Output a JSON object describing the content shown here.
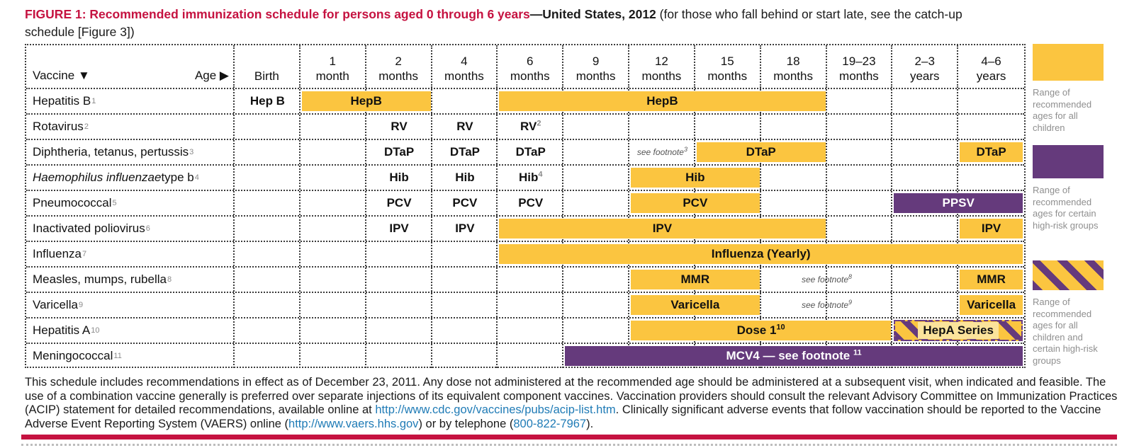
{
  "title": {
    "figure_red": "FIGURE 1: Recommended immunization schedule for persons aged 0 through 6 years",
    "bold_suffix": "—United States, 2012",
    "normal_line1": " (for those who fall behind or start late, see the catch-up",
    "normal_line2": "schedule [Figure 3])"
  },
  "colors": {
    "yellow": "#FBC540",
    "purple": "#653A7C",
    "red": "#C51240",
    "link_blue": "#1F7BB6",
    "legend_text_gray": "#8F8F8F"
  },
  "chart_data": {
    "type": "table",
    "title": "FIGURE 1: Recommended immunization schedule for persons aged 0 through 6 years—United States, 2012",
    "corner": {
      "vaccine": "Vaccine ▼",
      "age": "Age ▶"
    },
    "age_columns": [
      {
        "line1": "",
        "line2": "Birth"
      },
      {
        "line1": "1",
        "line2": "month"
      },
      {
        "line1": "2",
        "line2": "months"
      },
      {
        "line1": "4",
        "line2": "months"
      },
      {
        "line1": "6",
        "line2": "months"
      },
      {
        "line1": "9",
        "line2": "months"
      },
      {
        "line1": "12",
        "line2": "months"
      },
      {
        "line1": "15",
        "line2": "months"
      },
      {
        "line1": "18",
        "line2": "months"
      },
      {
        "line1": "19–23",
        "line2": "months"
      },
      {
        "line1": "2–3",
        "line2": "years"
      },
      {
        "line1": "4–6",
        "line2": "years"
      }
    ],
    "rows": [
      {
        "vaccine": "Hepatitis B",
        "sup": "1",
        "items": [
          {
            "t": "text",
            "c": 1,
            "s": 1,
            "label": "Hep B"
          },
          {
            "t": "ybar",
            "c": 2,
            "s": 2,
            "label": "HepB"
          },
          {
            "t": "ybar",
            "c": 5,
            "s": 5,
            "label": "HepB"
          }
        ]
      },
      {
        "vaccine": "Rotavirus",
        "sup": "2",
        "items": [
          {
            "t": "text",
            "c": 3,
            "s": 1,
            "label": "RV"
          },
          {
            "t": "text",
            "c": 4,
            "s": 1,
            "label": "RV"
          },
          {
            "t": "text",
            "c": 5,
            "s": 1,
            "label": "RV",
            "sup": "2"
          }
        ]
      },
      {
        "vaccine": "Diphtheria, tetanus, pertussis",
        "sup": "3",
        "items": [
          {
            "t": "text",
            "c": 3,
            "s": 1,
            "label": "DTaP"
          },
          {
            "t": "text",
            "c": 4,
            "s": 1,
            "label": "DTaP"
          },
          {
            "t": "text",
            "c": 5,
            "s": 1,
            "label": "DTaP"
          },
          {
            "t": "note",
            "c": 7,
            "s": 1,
            "label": "see footnote",
            "sup": "3"
          },
          {
            "t": "ybar",
            "c": 8,
            "s": 2,
            "label": "DTaP"
          },
          {
            "t": "ybar",
            "c": 12,
            "s": 1,
            "label": "DTaP"
          }
        ]
      },
      {
        "vaccine_italic": "Haemophilus influenzae",
        "vaccine": " type b",
        "sup": "4",
        "items": [
          {
            "t": "text",
            "c": 3,
            "s": 1,
            "label": "Hib"
          },
          {
            "t": "text",
            "c": 4,
            "s": 1,
            "label": "Hib"
          },
          {
            "t": "text",
            "c": 5,
            "s": 1,
            "label": "Hib",
            "sup": "4"
          },
          {
            "t": "ybar",
            "c": 7,
            "s": 2,
            "label": "Hib"
          }
        ]
      },
      {
        "vaccine": "Pneumococcal",
        "sup": "5",
        "items": [
          {
            "t": "text",
            "c": 3,
            "s": 1,
            "label": "PCV"
          },
          {
            "t": "text",
            "c": 4,
            "s": 1,
            "label": "PCV"
          },
          {
            "t": "text",
            "c": 5,
            "s": 1,
            "label": "PCV"
          },
          {
            "t": "ybar",
            "c": 7,
            "s": 2,
            "label": "PCV"
          },
          {
            "t": "pbar",
            "c": 11,
            "s": 2,
            "label": "PPSV"
          }
        ]
      },
      {
        "vaccine": "Inactivated poliovirus",
        "sup": "6",
        "items": [
          {
            "t": "text",
            "c": 3,
            "s": 1,
            "label": "IPV"
          },
          {
            "t": "text",
            "c": 4,
            "s": 1,
            "label": "IPV"
          },
          {
            "t": "ybar",
            "c": 5,
            "s": 5,
            "label": "IPV"
          },
          {
            "t": "ybar",
            "c": 12,
            "s": 1,
            "label": "IPV"
          }
        ]
      },
      {
        "vaccine": "Influenza",
        "sup": "7",
        "items": [
          {
            "t": "ybar",
            "c": 5,
            "s": 8,
            "label": "Influenza (Yearly)"
          }
        ]
      },
      {
        "vaccine": "Measles, mumps, rubella",
        "sup": "8",
        "items": [
          {
            "t": "ybar",
            "c": 7,
            "s": 2,
            "label": "MMR"
          },
          {
            "t": "note",
            "c": 9,
            "s": 2,
            "label": "see footnote",
            "sup": "8"
          },
          {
            "t": "ybar",
            "c": 12,
            "s": 1,
            "label": "MMR"
          }
        ]
      },
      {
        "vaccine": "Varicella",
        "sup": "9",
        "items": [
          {
            "t": "ybar",
            "c": 7,
            "s": 2,
            "label": "Varicella"
          },
          {
            "t": "note",
            "c": 9,
            "s": 2,
            "label": "see footnote",
            "sup": "9"
          },
          {
            "t": "ybar",
            "c": 12,
            "s": 1,
            "label": "Varicella"
          }
        ]
      },
      {
        "vaccine": "Hepatitis A",
        "sup": "10",
        "items": [
          {
            "t": "ybar",
            "c": 7,
            "s": 4,
            "label": "Dose 1",
            "sup": "10"
          },
          {
            "t": "hbar",
            "c": 11,
            "s": 2,
            "label": "HepA Series"
          }
        ]
      },
      {
        "vaccine": "Meningococcal",
        "sup": "11",
        "items": [
          {
            "t": "pbar",
            "c": 6,
            "s": 7,
            "label": "MCV4 — see footnote ",
            "sup": "11"
          }
        ]
      }
    ]
  },
  "legend": [
    {
      "swatch": "yellow",
      "label": "Range of recommended ages for all children"
    },
    {
      "swatch": "purple",
      "label": "Range of recommended ages for certain high-risk groups"
    },
    {
      "swatch": "hatched",
      "label": "Range of recommended ages for all children and certain high-risk groups"
    }
  ],
  "footer": {
    "text1": "This schedule includes recommendations in effect as of December 23, 2011. Any dose not administered at the recommended age should be administered at a subsequent visit, when indicated and feasible. The use of a combination vaccine generally is preferred over separate injections of its equivalent component vaccines. Vaccination providers should consult the relevant Advisory Committee on Immunization Practices (ACIP) statement for detailed recommendations, available online at ",
    "link1": "http://www.cdc.gov/vaccines/pubs/acip-list.htm",
    "text2": ". Clinically significant adverse events that follow vaccination should be reported to the Vaccine Adverse Event Reporting System (VAERS) online (",
    "link2": "http://www.vaers.hhs.gov",
    "text3": ") or by telephone (",
    "link3": "800-822-7967",
    "text4": ")."
  }
}
